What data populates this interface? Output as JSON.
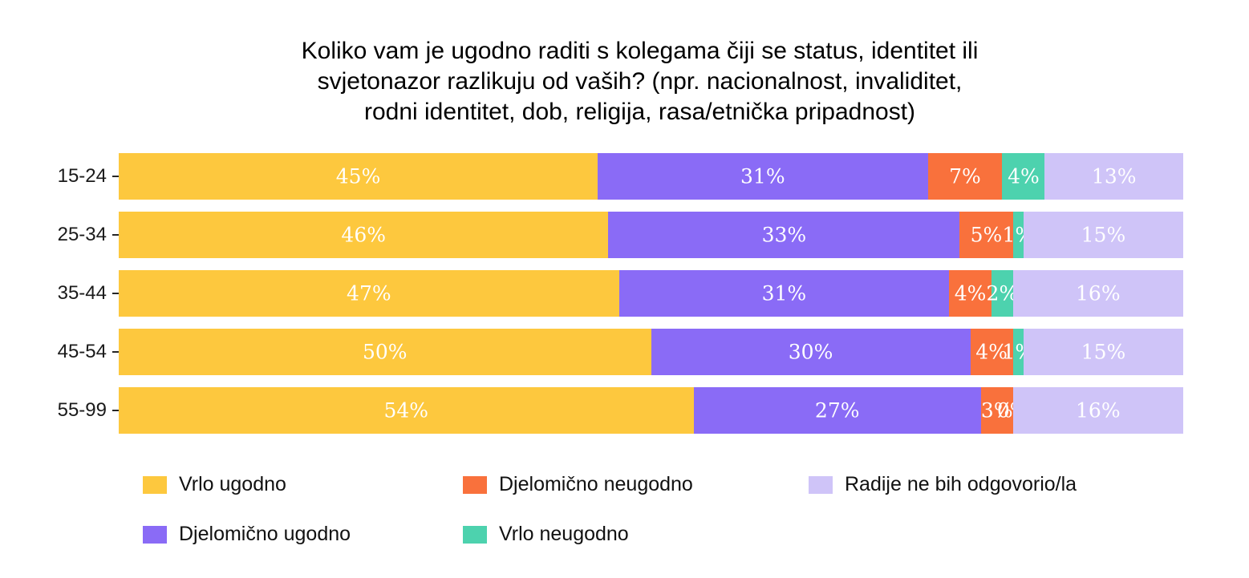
{
  "chart_data": {
    "type": "bar",
    "orientation": "horizontal_stacked",
    "title": "Koliko vam je ugodno raditi s kolegama čiji se status, identitet ili\nsvjetonazor razlikuju od vaših? (npr. nacionalnost, invaliditet,\nrodni identitet, dob, religija, rasa/etnička pripadnost)",
    "categories": [
      "15-24",
      "25-34",
      "35-44",
      "45-54",
      "55-99"
    ],
    "series": [
      {
        "name": "Vrlo ugodno",
        "color": "#FDC83E",
        "values": [
          45,
          46,
          47,
          50,
          54
        ]
      },
      {
        "name": "Djelomično ugodno",
        "color": "#8A6BF6",
        "values": [
          31,
          33,
          31,
          30,
          27
        ]
      },
      {
        "name": "Djelomično neugodno",
        "color": "#F9713C",
        "values": [
          7,
          5,
          4,
          4,
          3
        ]
      },
      {
        "name": "Vrlo neugodno",
        "color": "#4DD2AE",
        "values": [
          4,
          1,
          2,
          1,
          0
        ]
      },
      {
        "name": "Radije ne bih odgovorio/la",
        "color": "#CFC4F8",
        "values": [
          13,
          15,
          16,
          15,
          16
        ]
      }
    ],
    "value_suffix": "%",
    "xlim": [
      0,
      100
    ],
    "legend_position": "bottom",
    "legend_order": [
      0,
      2,
      4,
      1,
      3
    ],
    "grid": "off",
    "value_label_color": "#ffffff",
    "axis_label_color": "#1a1a1a"
  }
}
